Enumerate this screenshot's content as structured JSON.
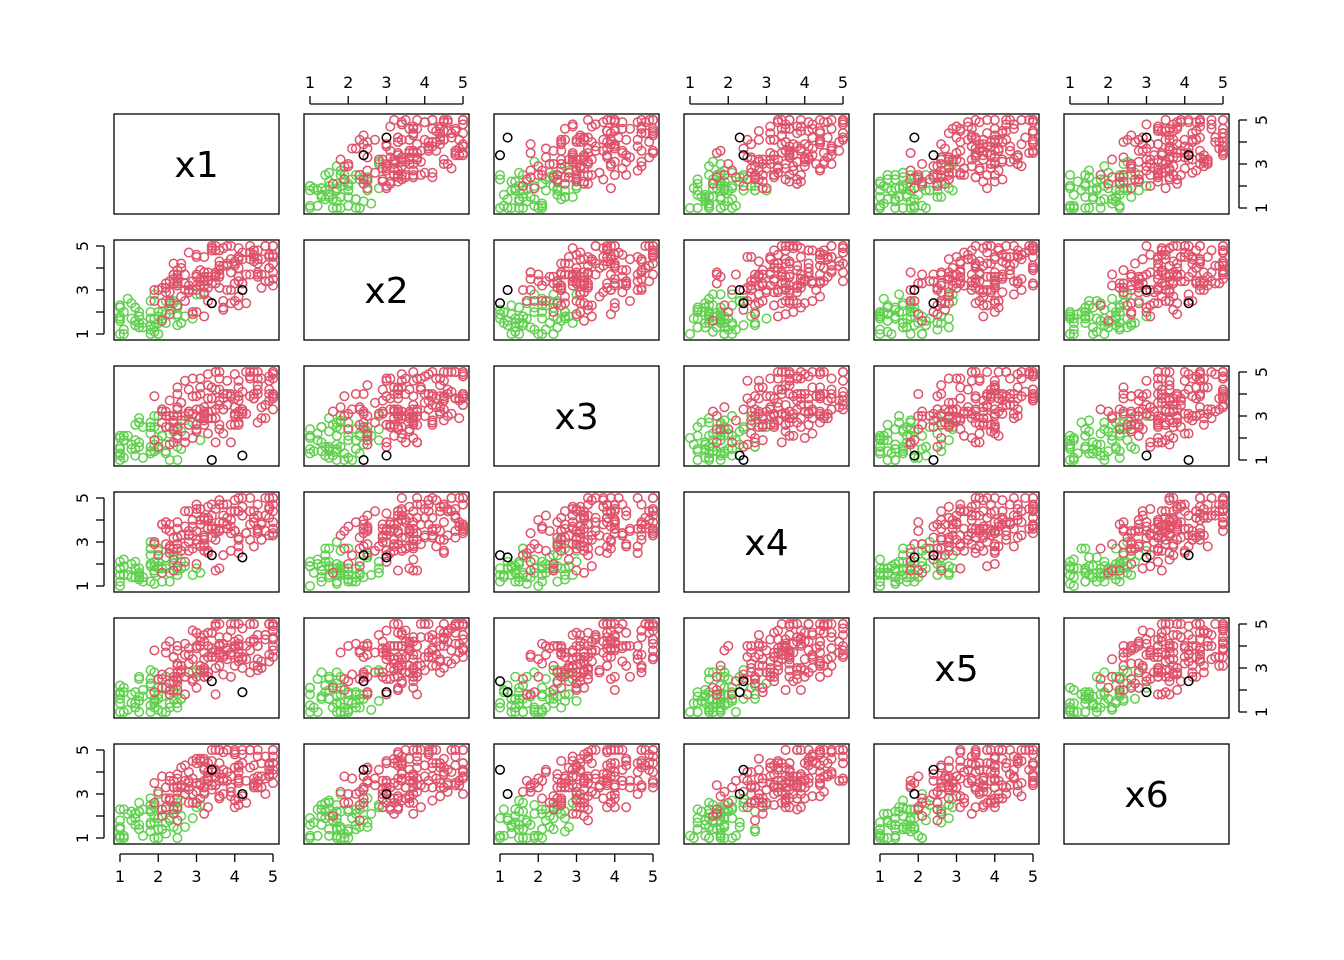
{
  "chart_data": {
    "type": "scatter",
    "variables": [
      "x1",
      "x2",
      "x3",
      "x4",
      "x5",
      "x6"
    ],
    "axis_range": [
      1,
      5
    ],
    "tick_values": [
      1,
      2,
      3,
      4,
      5
    ],
    "side_tick_values": [
      1,
      3,
      5
    ],
    "grid": false,
    "colors": {
      "group_high": "#DF536B",
      "group_low": "#61D04F",
      "highlight": "#000000"
    },
    "groups": [
      {
        "id": "group_high",
        "color": "#DF536B",
        "count": 160
      },
      {
        "id": "group_low",
        "color": "#61D04F",
        "count": 60
      },
      {
        "id": "highlight",
        "color": "#000000",
        "points": [
          [
            4.2,
            3.0,
            1.2,
            2.3,
            1.9,
            3.0
          ],
          [
            3.4,
            2.4,
            1.0,
            2.4,
            2.4,
            4.1
          ]
        ]
      }
    ]
  }
}
